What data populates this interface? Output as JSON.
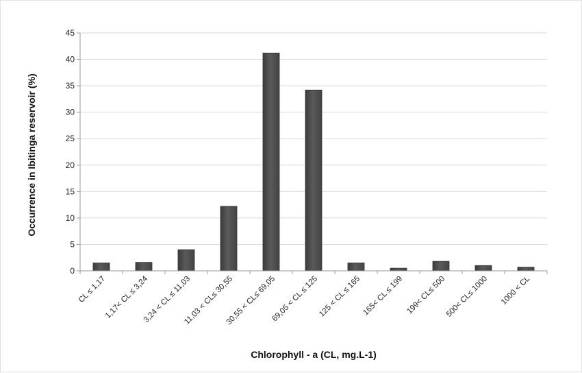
{
  "chart_data": {
    "type": "bar",
    "categories": [
      "CL ≤  1,17",
      "1,17< CL ≤ 3,24",
      "3,24 < CL ≤ 11,03",
      "11,03 < CL≤ 30,55",
      "30,55 < CL≤ 69,05",
      "69,05 < CL ≤ 125",
      "125 < CL ≤ 165",
      "165< CL ≤ 199",
      "199< CL≤ 500",
      "500< CL≤ 1000",
      "1000 < CL"
    ],
    "values": [
      1.5,
      1.6,
      4.0,
      12.2,
      41.2,
      34.2,
      1.5,
      0.5,
      1.8,
      1.0,
      0.7
    ],
    "xlabel": "Chlorophyll - a (CL, mg.L-1)",
    "ylabel": "Occurrence in Ibitinga reservoir (%)",
    "ylim": [
      0,
      45
    ],
    "yticks": [
      0,
      5,
      10,
      15,
      20,
      25,
      30,
      35,
      40,
      45
    ],
    "grid": true,
    "bar_color": "#5a5a5a"
  }
}
